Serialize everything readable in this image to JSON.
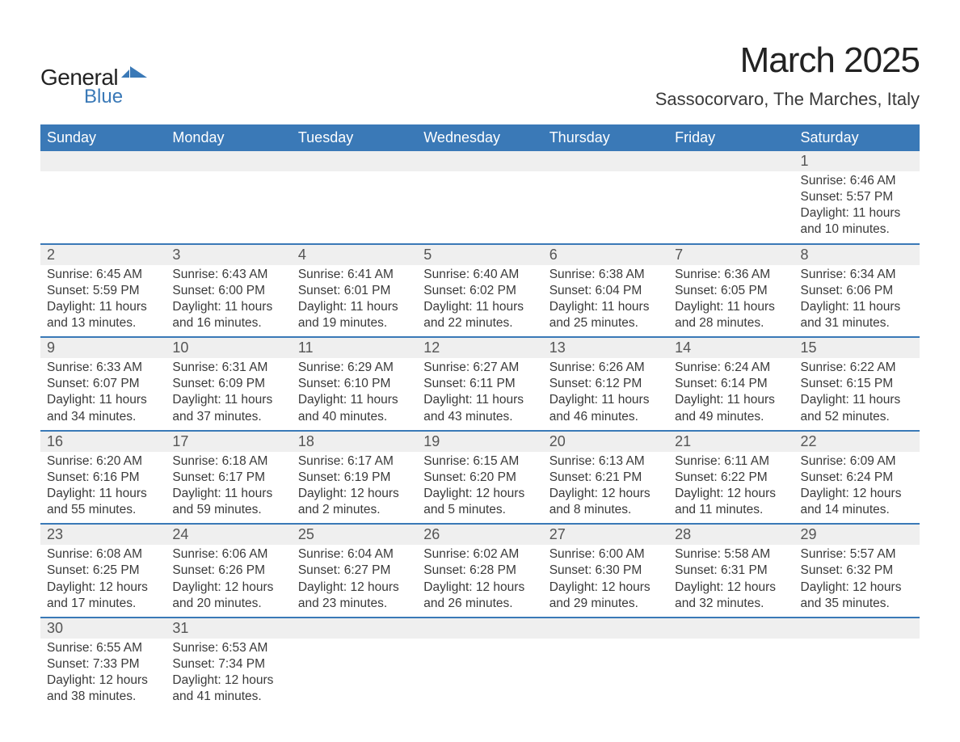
{
  "logo": {
    "word1": "General",
    "word2": "Blue",
    "accent_color": "#3a79b7"
  },
  "title": "March 2025",
  "location": "Sassocorvaro, The Marches, Italy",
  "weekday_headers": [
    "Sunday",
    "Monday",
    "Tuesday",
    "Wednesday",
    "Thursday",
    "Friday",
    "Saturday"
  ],
  "colors": {
    "header_bg": "#3a79b7",
    "header_fg": "#ffffff",
    "daynum_bg": "#efefef",
    "row_border": "#3a79b7",
    "text": "#3a3a3a"
  },
  "weeks": [
    [
      null,
      null,
      null,
      null,
      null,
      null,
      {
        "day": "1",
        "sunrise": "6:46 AM",
        "sunset": "5:57 PM",
        "daylight": "11 hours and 10 minutes."
      }
    ],
    [
      {
        "day": "2",
        "sunrise": "6:45 AM",
        "sunset": "5:59 PM",
        "daylight": "11 hours and 13 minutes."
      },
      {
        "day": "3",
        "sunrise": "6:43 AM",
        "sunset": "6:00 PM",
        "daylight": "11 hours and 16 minutes."
      },
      {
        "day": "4",
        "sunrise": "6:41 AM",
        "sunset": "6:01 PM",
        "daylight": "11 hours and 19 minutes."
      },
      {
        "day": "5",
        "sunrise": "6:40 AM",
        "sunset": "6:02 PM",
        "daylight": "11 hours and 22 minutes."
      },
      {
        "day": "6",
        "sunrise": "6:38 AM",
        "sunset": "6:04 PM",
        "daylight": "11 hours and 25 minutes."
      },
      {
        "day": "7",
        "sunrise": "6:36 AM",
        "sunset": "6:05 PM",
        "daylight": "11 hours and 28 minutes."
      },
      {
        "day": "8",
        "sunrise": "6:34 AM",
        "sunset": "6:06 PM",
        "daylight": "11 hours and 31 minutes."
      }
    ],
    [
      {
        "day": "9",
        "sunrise": "6:33 AM",
        "sunset": "6:07 PM",
        "daylight": "11 hours and 34 minutes."
      },
      {
        "day": "10",
        "sunrise": "6:31 AM",
        "sunset": "6:09 PM",
        "daylight": "11 hours and 37 minutes."
      },
      {
        "day": "11",
        "sunrise": "6:29 AM",
        "sunset": "6:10 PM",
        "daylight": "11 hours and 40 minutes."
      },
      {
        "day": "12",
        "sunrise": "6:27 AM",
        "sunset": "6:11 PM",
        "daylight": "11 hours and 43 minutes."
      },
      {
        "day": "13",
        "sunrise": "6:26 AM",
        "sunset": "6:12 PM",
        "daylight": "11 hours and 46 minutes."
      },
      {
        "day": "14",
        "sunrise": "6:24 AM",
        "sunset": "6:14 PM",
        "daylight": "11 hours and 49 minutes."
      },
      {
        "day": "15",
        "sunrise": "6:22 AM",
        "sunset": "6:15 PM",
        "daylight": "11 hours and 52 minutes."
      }
    ],
    [
      {
        "day": "16",
        "sunrise": "6:20 AM",
        "sunset": "6:16 PM",
        "daylight": "11 hours and 55 minutes."
      },
      {
        "day": "17",
        "sunrise": "6:18 AM",
        "sunset": "6:17 PM",
        "daylight": "11 hours and 59 minutes."
      },
      {
        "day": "18",
        "sunrise": "6:17 AM",
        "sunset": "6:19 PM",
        "daylight": "12 hours and 2 minutes."
      },
      {
        "day": "19",
        "sunrise": "6:15 AM",
        "sunset": "6:20 PM",
        "daylight": "12 hours and 5 minutes."
      },
      {
        "day": "20",
        "sunrise": "6:13 AM",
        "sunset": "6:21 PM",
        "daylight": "12 hours and 8 minutes."
      },
      {
        "day": "21",
        "sunrise": "6:11 AM",
        "sunset": "6:22 PM",
        "daylight": "12 hours and 11 minutes."
      },
      {
        "day": "22",
        "sunrise": "6:09 AM",
        "sunset": "6:24 PM",
        "daylight": "12 hours and 14 minutes."
      }
    ],
    [
      {
        "day": "23",
        "sunrise": "6:08 AM",
        "sunset": "6:25 PM",
        "daylight": "12 hours and 17 minutes."
      },
      {
        "day": "24",
        "sunrise": "6:06 AM",
        "sunset": "6:26 PM",
        "daylight": "12 hours and 20 minutes."
      },
      {
        "day": "25",
        "sunrise": "6:04 AM",
        "sunset": "6:27 PM",
        "daylight": "12 hours and 23 minutes."
      },
      {
        "day": "26",
        "sunrise": "6:02 AM",
        "sunset": "6:28 PM",
        "daylight": "12 hours and 26 minutes."
      },
      {
        "day": "27",
        "sunrise": "6:00 AM",
        "sunset": "6:30 PM",
        "daylight": "12 hours and 29 minutes."
      },
      {
        "day": "28",
        "sunrise": "5:58 AM",
        "sunset": "6:31 PM",
        "daylight": "12 hours and 32 minutes."
      },
      {
        "day": "29",
        "sunrise": "5:57 AM",
        "sunset": "6:32 PM",
        "daylight": "12 hours and 35 minutes."
      }
    ],
    [
      {
        "day": "30",
        "sunrise": "6:55 AM",
        "sunset": "7:33 PM",
        "daylight": "12 hours and 38 minutes."
      },
      {
        "day": "31",
        "sunrise": "6:53 AM",
        "sunset": "7:34 PM",
        "daylight": "12 hours and 41 minutes."
      },
      null,
      null,
      null,
      null,
      null
    ]
  ],
  "labels": {
    "sunrise": "Sunrise:",
    "sunset": "Sunset:",
    "daylight": "Daylight:"
  }
}
